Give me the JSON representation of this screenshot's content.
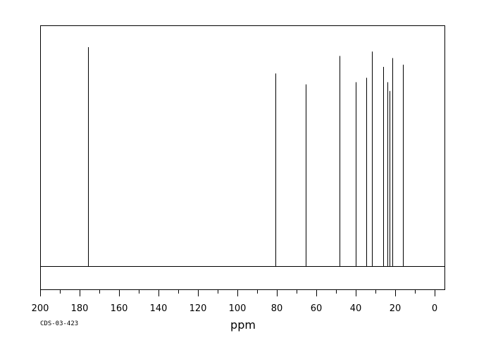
{
  "chart_data": {
    "type": "line",
    "subtype": "nmr-stick-spectrum",
    "xlabel": "ppm",
    "xlim": [
      200,
      -5
    ],
    "x_reversed": true,
    "x_ticks": [
      200,
      180,
      160,
      140,
      120,
      100,
      80,
      60,
      40,
      20,
      0
    ],
    "x_tick_labels": [
      "200",
      "180",
      "160",
      "140",
      "120",
      "100",
      "80",
      "60",
      "40",
      "20",
      "0"
    ],
    "y_axis_visible": false,
    "grid": false,
    "legend": "none",
    "line_color": "#000000",
    "peaks": [
      {
        "ppm": 175.8,
        "intensity": 1.0
      },
      {
        "ppm": 80.6,
        "intensity": 0.88
      },
      {
        "ppm": 65.3,
        "intensity": 0.83
      },
      {
        "ppm": 48.3,
        "intensity": 0.96
      },
      {
        "ppm": 40.1,
        "intensity": 0.84
      },
      {
        "ppm": 34.8,
        "intensity": 0.86
      },
      {
        "ppm": 31.7,
        "intensity": 0.98
      },
      {
        "ppm": 25.9,
        "intensity": 0.91
      },
      {
        "ppm": 23.8,
        "intensity": 0.84
      },
      {
        "ppm": 22.8,
        "intensity": 0.8
      },
      {
        "ppm": 21.5,
        "intensity": 0.95
      },
      {
        "ppm": 16.1,
        "intensity": 0.92
      }
    ]
  },
  "footer": {
    "code": "CDS-03-423"
  }
}
